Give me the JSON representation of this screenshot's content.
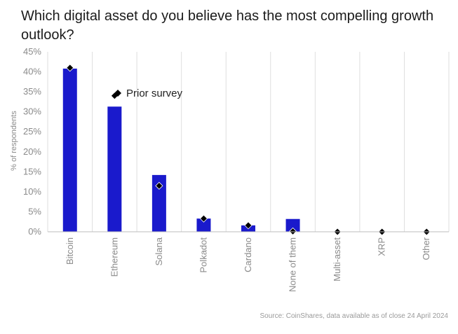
{
  "chart_data": {
    "type": "bar",
    "title": "Which digital asset do you believe has the most compelling growth outlook?",
    "ylabel": "% of respondents",
    "xlabel": "",
    "ylim": [
      0,
      45
    ],
    "y_ticks": [
      "0%",
      "5%",
      "10%",
      "15%",
      "20%",
      "25%",
      "30%",
      "35%",
      "40%",
      "45%"
    ],
    "grid": "vertical",
    "categories": [
      "Bitcoin",
      "Ethereum",
      "Solana",
      "Polkadot",
      "Cardano",
      "None of them",
      "Multi-asset",
      "XRP",
      "Other"
    ],
    "series": [
      {
        "values": [
          40.8,
          31.3,
          14.2,
          3.3,
          1.6,
          3.2,
          0,
          0,
          0
        ],
        "color": "#1a1acc"
      },
      {
        "name": "Prior survey",
        "values": [
          41.0,
          34.0,
          11.5,
          3.3,
          1.6,
          0.1,
          0,
          0,
          0
        ],
        "marker": "diamond",
        "color": "#000000"
      }
    ],
    "legend_placement": "top-center"
  },
  "source_note": "Source: CoinShares, data available as of close 24 April 2024"
}
